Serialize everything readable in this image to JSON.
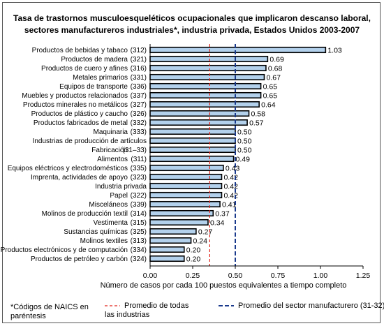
{
  "chart_data": {
    "type": "bar",
    "orientation": "horizontal",
    "title": "Tasa de trastornos musculoesqueléticos ocupacionales que implicaron descanso laboral,",
    "subtitle": "sectores manufactureros industriales*, industria privada, Estados Unidos 2003-2007",
    "categories": [
      "Productos de bebidas y tabaco",
      "Productos de madera",
      "Productos de cuero y afines",
      "Metales primarios",
      "Equipos de transporte",
      "Muebles y productos relacionados",
      "Productos minerales no metálicos",
      "Productos de plástico y caucho",
      "Productos fabricados de metal",
      "Maquinaria",
      "Industrias de producción de artículos",
      "Fabricación",
      "Alimentos",
      "Equipos eléctricos y electrodomésticos",
      "Imprenta, actividades de apoyo",
      "Industria privada",
      "Papel",
      "Misceláneos",
      "Molinos de producción textil",
      "Vestimenta",
      "Sustancias químicas",
      "Molinos textiles",
      "Productos electrónicos y de computación",
      "Productos de petróleo y carbón"
    ],
    "codes": [
      "(312)",
      "(321)",
      "(316)",
      "(331)",
      "(336)",
      "(337)",
      "(327)",
      "(326)",
      "(332)",
      "(333)",
      "",
      "(31–33)",
      "(311)",
      "(335)",
      "(323)",
      "",
      "(322)",
      "(339)",
      "(314)",
      "(315)",
      "(325)",
      "(313)",
      "(334)",
      "(324)"
    ],
    "values": [
      1.03,
      0.69,
      0.68,
      0.67,
      0.65,
      0.65,
      0.64,
      0.58,
      0.57,
      0.5,
      0.5,
      0.5,
      0.49,
      0.43,
      0.42,
      0.42,
      0.42,
      0.41,
      0.37,
      0.34,
      0.27,
      0.24,
      0.2,
      0.2
    ],
    "value_labels": [
      "1.03",
      "0.69",
      "0.68",
      "0.67",
      "0.65",
      "0.65",
      "0.64",
      "0.58",
      "0.57",
      "0.50",
      "0.50",
      "0.50",
      "0.49",
      "0.43",
      "0.42",
      "0.42",
      "0.42",
      "0.41",
      "0.37",
      "0.34",
      "0.27",
      "0.24",
      "0.20",
      "0.20"
    ],
    "xlabel": "Número de casos por cada 100 puestos equivalentes a tiempo completo",
    "xlim": [
      0,
      1.25
    ],
    "xticks": [
      "0.00",
      "0.25",
      "0.50",
      "0.75",
      "1.00",
      "1.25"
    ],
    "grid": false,
    "bar_color": "#b3d1ec",
    "bar_edge_color": "#000000",
    "reference_lines": [
      {
        "label": "Promedio de todas las industrias",
        "label_lines": [
          "Promedio de todas",
          "las industrias"
        ],
        "value": 0.35,
        "color": "#e2231a",
        "style": "dashed"
      },
      {
        "label": "Promedio del sector manufacturero (31-32)",
        "label_lines": [
          "Promedio del sector manufacturero (31-32)"
        ],
        "value": 0.5,
        "color": "#1a3a8c",
        "style": "dashed"
      }
    ],
    "footnote_lines": [
      "*Códigos de NAICS en",
      "paréntesis"
    ]
  }
}
